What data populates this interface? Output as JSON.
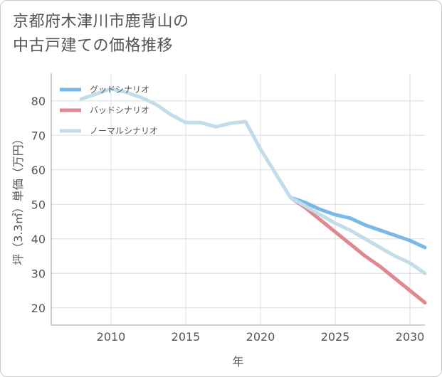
{
  "title_lines": [
    "京都府木津川市鹿背山の",
    "中古戸建ての価格推移"
  ],
  "chart_data": {
    "type": "line",
    "title": "京都府木津川市鹿背山の中古戸建ての価格推移",
    "xlabel": "年",
    "ylabel": "坪（3.3㎡）単価（万円）",
    "xlim": [
      2006,
      2031
    ],
    "ylim": [
      15,
      88
    ],
    "xticks": [
      2010,
      2015,
      2020,
      2025,
      2030
    ],
    "yticks": [
      20,
      30,
      40,
      50,
      60,
      70,
      80
    ],
    "grid": true,
    "legend_position": "top-left",
    "series": [
      {
        "name": "グッドシナリオ",
        "color": "#7ab8e8",
        "x": [
          2022,
          2023,
          2024,
          2025,
          2026,
          2027,
          2028,
          2029,
          2030,
          2031
        ],
        "y": [
          52,
          50.5,
          48.5,
          47,
          46,
          44,
          42.5,
          41,
          39.5,
          37.5
        ]
      },
      {
        "name": "バッドシナリオ",
        "color": "#e0888f",
        "x": [
          2022,
          2023,
          2024,
          2025,
          2026,
          2027,
          2028,
          2029,
          2030,
          2031
        ],
        "y": [
          52,
          49,
          45.5,
          42,
          38.5,
          35,
          32,
          28.5,
          25,
          21.5
        ]
      },
      {
        "name": "ノーマルシナリオ",
        "color": "#c2dcea",
        "x": [
          2008,
          2009,
          2010,
          2011,
          2012,
          2013,
          2014,
          2015,
          2016,
          2017,
          2018,
          2019,
          2020,
          2021,
          2022,
          2023,
          2024,
          2025,
          2026,
          2027,
          2028,
          2029,
          2030,
          2031
        ],
        "y": [
          80.5,
          82,
          83.5,
          82.5,
          81,
          79,
          76,
          73.7,
          73.7,
          72.5,
          73.5,
          74,
          66,
          59,
          52,
          49.5,
          47,
          44.5,
          42.5,
          40,
          37.5,
          35,
          33,
          30
        ]
      }
    ]
  }
}
